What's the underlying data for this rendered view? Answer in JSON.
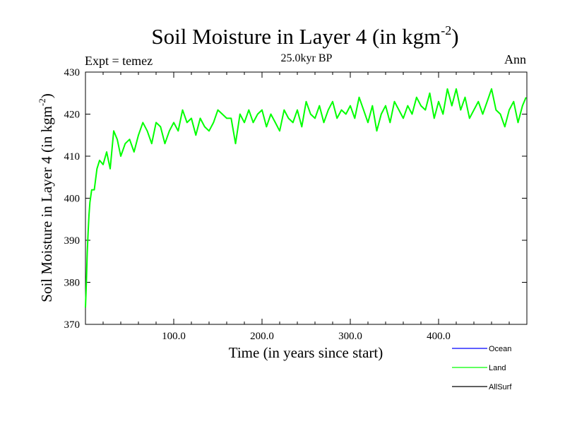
{
  "chart_data": {
    "type": "line",
    "title": "Soil Moisture in Layer 4 (in kgm",
    "title_superscript": "-2",
    "title_close": ")",
    "subtitle": "25.0kyr BP",
    "experiment_label": "Expt = temez",
    "period_label": "Ann",
    "xlabel": "Time (in years since start)",
    "ylabel": "Soil Moisture in Layer 4 (in kgm",
    "ylabel_superscript": "-2",
    "ylabel_close": ")",
    "xlim": [
      0,
      500
    ],
    "ylim": [
      370,
      430
    ],
    "x_ticks": [
      100,
      200,
      300,
      400
    ],
    "x_tick_labels": [
      "100.0",
      "200.0",
      "300.0",
      "400.0"
    ],
    "y_ticks": [
      370,
      380,
      390,
      400,
      410,
      420,
      430
    ],
    "y_tick_labels": [
      "370",
      "380",
      "390",
      "400",
      "410",
      "420",
      "430"
    ],
    "legend_position": "bottom-right",
    "series": [
      {
        "name": "Ocean",
        "color": "#0000ff",
        "x": [],
        "values": []
      },
      {
        "name": "Land",
        "color": "#00ff00",
        "x": [
          0,
          1,
          2,
          3,
          4,
          5,
          7,
          10,
          13,
          16,
          20,
          24,
          28,
          32,
          36,
          40,
          45,
          50,
          55,
          60,
          65,
          70,
          75,
          80,
          85,
          90,
          95,
          100,
          105,
          110,
          115,
          120,
          125,
          130,
          135,
          140,
          145,
          150,
          155,
          160,
          165,
          170,
          175,
          180,
          185,
          190,
          195,
          200,
          205,
          210,
          215,
          220,
          225,
          230,
          235,
          240,
          245,
          250,
          255,
          260,
          265,
          270,
          275,
          280,
          285,
          290,
          295,
          300,
          305,
          310,
          315,
          320,
          325,
          330,
          335,
          340,
          345,
          350,
          355,
          360,
          365,
          370,
          375,
          380,
          385,
          390,
          395,
          400,
          405,
          410,
          415,
          420,
          425,
          430,
          435,
          440,
          445,
          450,
          455,
          460,
          465,
          470,
          475,
          480,
          485,
          490,
          495,
          499
        ],
        "values": [
          374,
          380,
          387,
          392,
          396,
          399,
          402,
          402,
          407,
          409,
          408,
          411,
          407,
          416,
          414,
          410,
          413,
          414,
          411,
          415,
          418,
          416,
          413,
          418,
          417,
          413,
          416,
          418,
          416,
          421,
          418,
          419,
          415,
          419,
          417,
          416,
          418,
          421,
          420,
          419,
          419,
          413,
          420,
          418,
          421,
          418,
          420,
          421,
          417,
          420,
          418,
          416,
          421,
          419,
          418,
          421,
          417,
          423,
          420,
          419,
          422,
          418,
          421,
          423,
          419,
          421,
          420,
          422,
          419,
          424,
          421,
          418,
          422,
          416,
          420,
          422,
          418,
          423,
          421,
          419,
          422,
          420,
          424,
          422,
          421,
          425,
          419,
          423,
          420,
          426,
          422,
          426,
          421,
          424,
          419,
          421,
          423,
          420,
          423,
          426,
          421,
          420,
          417,
          421,
          423,
          418,
          422,
          424
        ]
      },
      {
        "name": "AllSurf",
        "color": "#000000",
        "x": [],
        "values": []
      }
    ]
  }
}
